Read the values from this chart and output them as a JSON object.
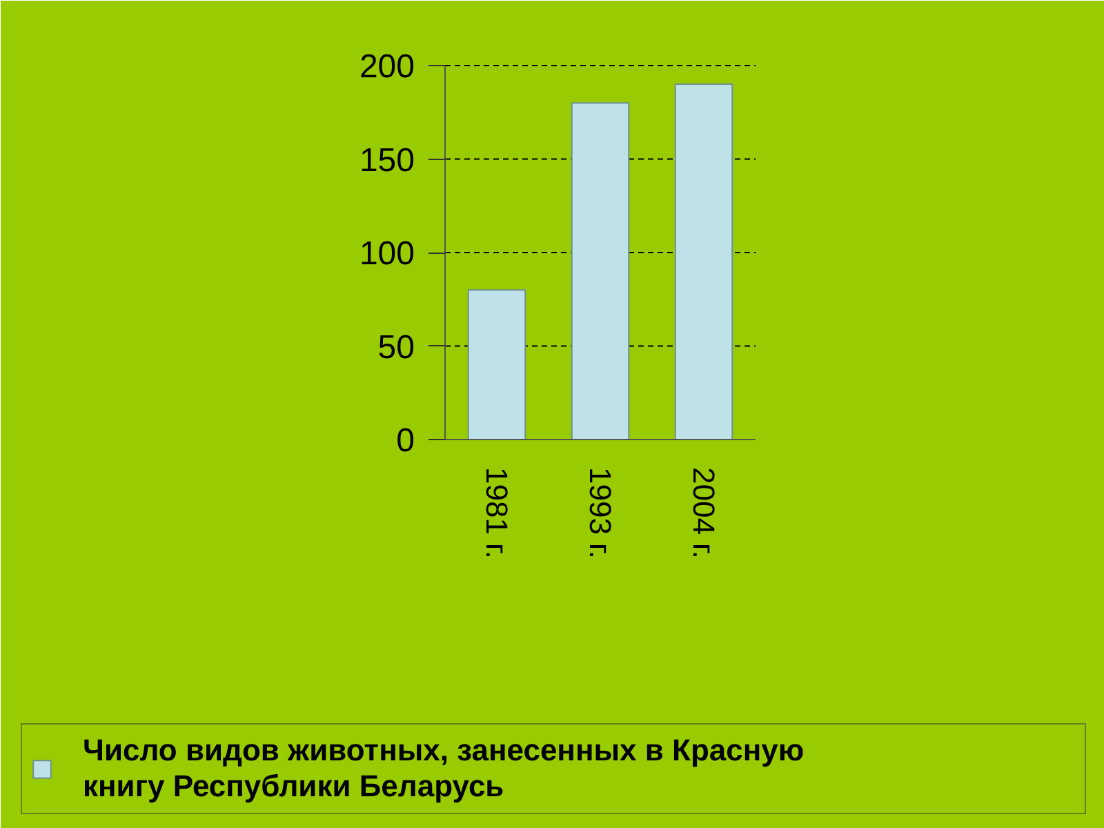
{
  "chart_data": {
    "type": "bar",
    "categories": [
      "1981 г.",
      "1993 г.",
      "2004 г."
    ],
    "series": [
      {
        "name": "Число видов животных, занесенных в Красную книгу Республики Беларусь",
        "color": "#bfe2e8",
        "values": [
          80,
          180,
          190
        ]
      }
    ],
    "ylim": [
      0,
      200
    ],
    "yticks": [
      0,
      50,
      100,
      150,
      200
    ],
    "grid": "y",
    "legend": "bottom"
  }
}
